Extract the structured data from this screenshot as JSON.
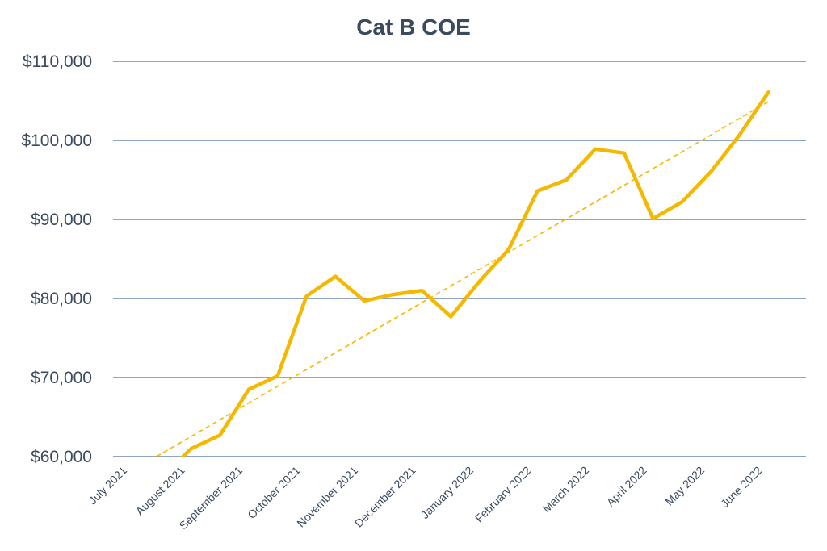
{
  "chart_data": {
    "type": "line",
    "title": "Cat B COE",
    "xlabel": "",
    "ylabel": "",
    "ylim": [
      60000,
      110000
    ],
    "x_range": [
      0,
      24
    ],
    "y_ticks": [
      60000,
      70000,
      80000,
      90000,
      100000,
      110000
    ],
    "y_tick_labels": [
      "$60,000",
      "$70,000",
      "$80,000",
      "$90,000",
      "$100,000",
      "$110,000"
    ],
    "categories": [
      "July 2021",
      "August 2021",
      "September 2021",
      "October 2021",
      "November 2021",
      "December 2021",
      "January 2022",
      "February 2022",
      "March 2022",
      "April 2022",
      "May 2022",
      "June 2022"
    ],
    "category_positions": [
      0,
      2,
      4,
      6,
      8,
      10,
      12,
      14,
      16,
      18,
      20,
      22
    ],
    "grid": true,
    "legend": "none",
    "colors": {
      "line": "#f5b800",
      "trend": "#f5b800",
      "grid": "#4a6fa5",
      "text": "#3b4a5e"
    },
    "series": [
      {
        "name": "Cat B COE",
        "points": [
          [
            2.0,
            58500
          ],
          [
            2.7,
            61000
          ],
          [
            3.7,
            62700
          ],
          [
            4.7,
            68500
          ],
          [
            5.7,
            70200
          ],
          [
            6.7,
            80300
          ],
          [
            7.7,
            82800
          ],
          [
            8.7,
            79700
          ],
          [
            9.7,
            80500
          ],
          [
            10.7,
            81000
          ],
          [
            11.7,
            77700
          ],
          [
            12.7,
            82200
          ],
          [
            13.7,
            86200
          ],
          [
            14.7,
            93600
          ],
          [
            15.7,
            95000
          ],
          [
            16.7,
            98900
          ],
          [
            17.7,
            98400
          ],
          [
            18.7,
            90100
          ],
          [
            19.7,
            92200
          ],
          [
            20.7,
            96000
          ],
          [
            21.7,
            100700
          ],
          [
            22.7,
            106100
          ]
        ]
      }
    ],
    "trendline": {
      "name": "Linear trend",
      "start": [
        1.5,
        60000
      ],
      "end": [
        22.7,
        104900
      ]
    }
  }
}
